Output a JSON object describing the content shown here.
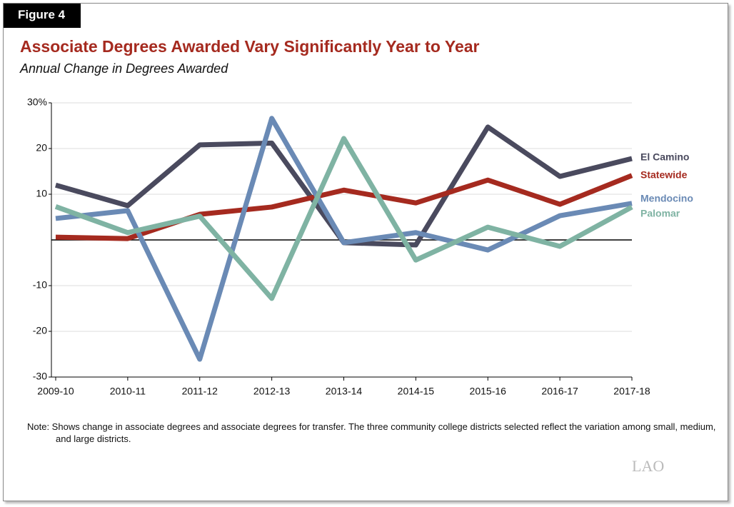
{
  "figure_label": "Figure 4",
  "chart_data": {
    "type": "line",
    "title": "Associate Degrees Awarded Vary Significantly Year to Year",
    "subtitle": "Annual Change in Degrees Awarded",
    "categories": [
      "2009-10",
      "2010-11",
      "2011-12",
      "2012-13",
      "2013-14",
      "2014-15",
      "2015-16",
      "2016-17",
      "2017-18"
    ],
    "series": [
      {
        "name": "El Camino",
        "color": "#4a4a5e",
        "values": [
          12.0,
          7.5,
          20.8,
          21.2,
          -0.6,
          -1.1,
          24.7,
          13.9,
          17.8
        ]
      },
      {
        "name": "Statewide",
        "color": "#a52a1f",
        "values": [
          0.6,
          0.3,
          5.6,
          7.2,
          10.9,
          8.1,
          13.1,
          7.8,
          14.1
        ]
      },
      {
        "name": "Mendocino",
        "color": "#6a8ab5",
        "values": [
          4.7,
          6.4,
          -26.1,
          26.6,
          -0.6,
          1.6,
          -2.2,
          5.3,
          8.0
        ]
      },
      {
        "name": "Palomar",
        "color": "#7fb3a3",
        "values": [
          7.3,
          1.6,
          5.2,
          -12.8,
          22.2,
          -4.4,
          2.8,
          -1.4,
          7.2
        ]
      }
    ],
    "ylim": [
      -30,
      30
    ],
    "yticks": [
      {
        "value": 30,
        "label": "30%"
      },
      20,
      10,
      -10,
      -20,
      -30
    ],
    "grid": true
  },
  "note": "Note: Shows change in associate degrees and associate degrees for transfer. The three community college districts selected reflect the variation among small, medium, and large districts.",
  "logo": "LAO"
}
